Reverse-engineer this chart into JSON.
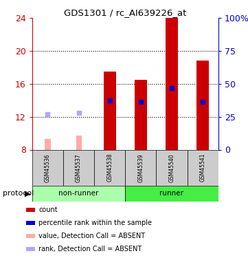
{
  "title": "GDS1301 / rc_AI639226_at",
  "samples": [
    "GSM45536",
    "GSM45537",
    "GSM45538",
    "GSM45539",
    "GSM45540",
    "GSM45541"
  ],
  "ylim": [
    8,
    24
  ],
  "yticks": [
    8,
    12,
    16,
    20,
    24
  ],
  "bar_bottom": 8,
  "count_values": [
    null,
    null,
    17.5,
    16.5,
    24.0,
    18.8
  ],
  "rank_values": [
    null,
    null,
    14.0,
    13.8,
    15.5,
    13.8
  ],
  "absent_count_values": [
    9.3,
    9.7,
    null,
    null,
    null,
    null
  ],
  "absent_rank_values": [
    12.3,
    12.5,
    null,
    null,
    null,
    null
  ],
  "count_color": "#cc0000",
  "rank_color": "#0000cc",
  "absent_count_color": "#ffaaaa",
  "absent_rank_color": "#aaaaff",
  "nonrunner_color": "#aaffaa",
  "runner_color": "#44ee44",
  "sample_box_color": "#cccccc",
  "bar_width": 0.4,
  "absent_bar_width": 0.18,
  "legend_items": [
    {
      "label": "count",
      "color": "#cc0000"
    },
    {
      "label": "percentile rank within the sample",
      "color": "#0000cc"
    },
    {
      "label": "value, Detection Call = ABSENT",
      "color": "#ffaaaa"
    },
    {
      "label": "rank, Detection Call = ABSENT",
      "color": "#aaaaff"
    }
  ],
  "right_tick_positions": [
    8,
    12,
    16,
    20,
    24
  ],
  "right_tick_labels": [
    "0",
    "25",
    "50",
    "75",
    "100%"
  ]
}
